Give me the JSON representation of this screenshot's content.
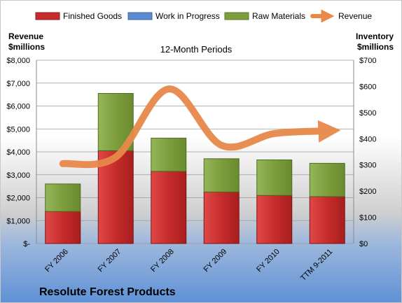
{
  "chart_data": {
    "type": "bar",
    "title": "12-Month Periods",
    "footer_title": "Resolute Forest Products",
    "categories": [
      "FY 2006",
      "FY 2007",
      "FY 2008",
      "FY 2009",
      "FY 2010",
      "TTM 9-2011"
    ],
    "stacked": true,
    "series": [
      {
        "name": "Finished Goods",
        "values": [
          1.4,
          4.05,
          3.15,
          2.25,
          2.1,
          2.05
        ],
        "color": "#c62c2c",
        "kind": "bar"
      },
      {
        "name": "Work in Progress",
        "values": [
          0,
          0,
          0,
          0,
          0,
          0
        ],
        "color": "#5b8bd0",
        "kind": "bar"
      },
      {
        "name": "Raw Materials",
        "values": [
          1.2,
          2.5,
          1.45,
          1.45,
          1.55,
          1.45
        ],
        "color": "#7c9e3c",
        "kind": "bar"
      },
      {
        "name": "Revenue",
        "values": [
          305,
          330,
          590,
          375,
          420,
          430
        ],
        "color": "#e8894a",
        "kind": "line",
        "axis": "right"
      }
    ],
    "left_axis": {
      "label_line1": "Revenue",
      "label_line2": "$millions",
      "ylim": [
        0,
        8000
      ],
      "ticks": [
        "$-",
        "$1,000",
        "$2,000",
        "$3,000",
        "$4,000",
        "$5,000",
        "$6,000",
        "$7,000",
        "$8,000"
      ]
    },
    "right_axis": {
      "label_line1": "Inventory",
      "label_line2": "$millions",
      "ylim": [
        0,
        700
      ],
      "ticks": [
        "$0",
        "$100",
        "$200",
        "$300",
        "$400",
        "$500",
        "$600",
        "$700"
      ]
    },
    "legend_position": "top",
    "grid": true
  },
  "colors": {
    "bg_top": "#ffffff",
    "bg_mid": "#dcdcdc",
    "bg_bottom": "#5e91d6"
  }
}
